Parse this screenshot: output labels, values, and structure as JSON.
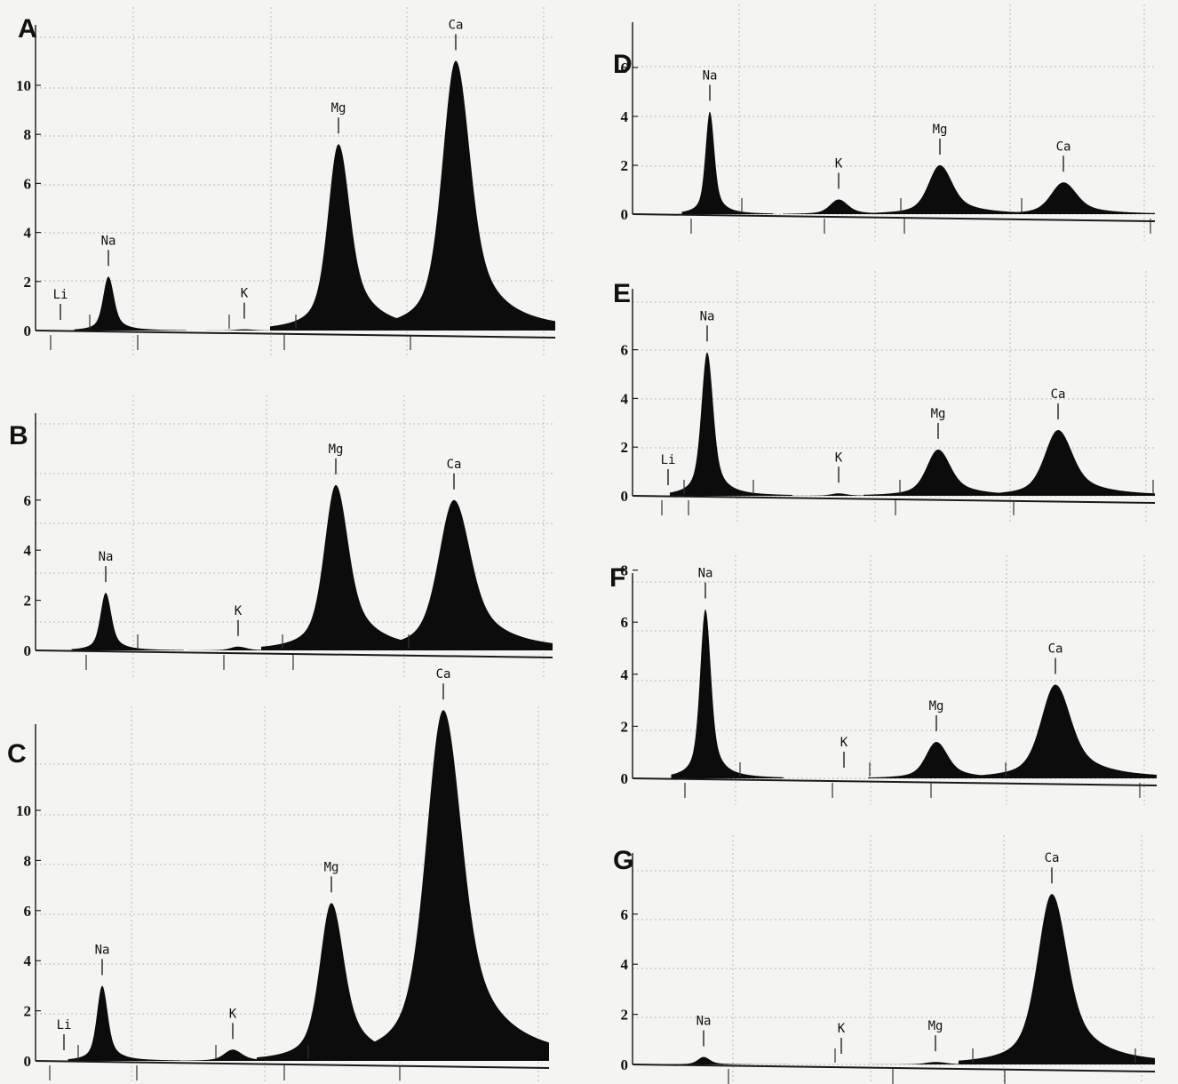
{
  "chart_data": [
    {
      "panel": "A",
      "type": "area",
      "yticks": [
        "0",
        "2",
        "4",
        "6",
        "8",
        "10"
      ],
      "ylim": [
        0,
        11.8
      ],
      "grid": true,
      "peaks": [
        {
          "label": "Li",
          "value": 0.0
        },
        {
          "label": "Na",
          "value": 2.2
        },
        {
          "label": "K",
          "value": 0.05
        },
        {
          "label": "Mg",
          "value": 7.6
        },
        {
          "label": "Ca",
          "value": 11.0
        }
      ]
    },
    {
      "panel": "B",
      "type": "area",
      "yticks": [
        "0",
        "2",
        "4",
        "6"
      ],
      "ylim": [
        0,
        7.8
      ],
      "grid": true,
      "peaks": [
        {
          "label": "Na",
          "value": 2.3
        },
        {
          "label": "K",
          "value": 0.15
        },
        {
          "label": "Mg",
          "value": 6.6
        },
        {
          "label": "Ca",
          "value": 6.0
        }
      ]
    },
    {
      "panel": "C",
      "type": "area",
      "yticks": [
        "0",
        "2",
        "4",
        "6",
        "8",
        "10"
      ],
      "ylim": [
        0,
        11.8
      ],
      "grid": true,
      "peaks": [
        {
          "label": "Li",
          "value": 0.0
        },
        {
          "label": "Na",
          "value": 3.0
        },
        {
          "label": "K",
          "value": 0.45
        },
        {
          "label": "Mg",
          "value": 6.3
        },
        {
          "label": "Ca",
          "value": 14.0
        }
      ]
    },
    {
      "panel": "D",
      "type": "area",
      "yticks": [
        "0",
        "2",
        "4",
        "6"
      ],
      "ylim": [
        0,
        6.1
      ],
      "grid": true,
      "peaks": [
        {
          "label": "Na",
          "value": 4.2
        },
        {
          "label": "K",
          "value": 0.6
        },
        {
          "label": "Mg",
          "value": 2.0
        },
        {
          "label": "Ca",
          "value": 1.3
        }
      ]
    },
    {
      "panel": "E",
      "type": "area",
      "yticks": [
        "0",
        "2",
        "4",
        "6"
      ],
      "ylim": [
        0,
        7.6
      ],
      "grid": true,
      "peaks": [
        {
          "label": "Li",
          "value": 0.0
        },
        {
          "label": "Na",
          "value": 5.9
        },
        {
          "label": "K",
          "value": 0.1
        },
        {
          "label": "Mg",
          "value": 1.9
        },
        {
          "label": "Ca",
          "value": 2.7
        }
      ]
    },
    {
      "panel": "F",
      "type": "area",
      "yticks": [
        "0",
        "2",
        "4",
        "6",
        "8"
      ],
      "ylim": [
        0,
        8.1
      ],
      "grid": true,
      "peaks": [
        {
          "label": "Na",
          "value": 6.5
        },
        {
          "label": "K",
          "value": 0.0
        },
        {
          "label": "Mg",
          "value": 1.4
        },
        {
          "label": "Ca",
          "value": 3.6
        }
      ]
    },
    {
      "panel": "G",
      "type": "area",
      "yticks": [
        "0",
        "2",
        "4",
        "6"
      ],
      "ylim": [
        0,
        7.8
      ],
      "grid": true,
      "peaks": [
        {
          "label": "Na",
          "value": 0.3
        },
        {
          "label": "K",
          "value": 0.0
        },
        {
          "label": "Mg",
          "value": 0.1
        },
        {
          "label": "Ca",
          "value": 6.8
        }
      ]
    }
  ]
}
